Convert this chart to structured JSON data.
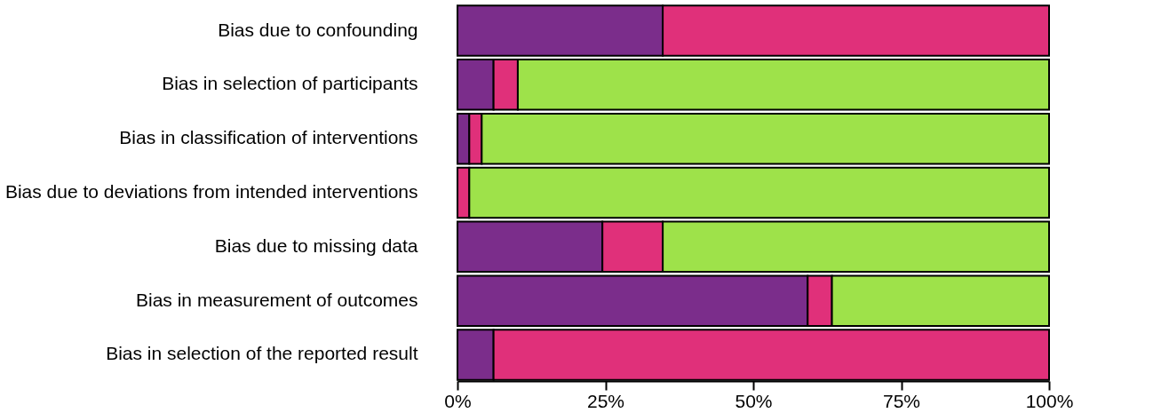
{
  "chart_data": {
    "type": "bar",
    "orientation": "horizontal",
    "stacked": true,
    "categories": [
      "Bias due to confounding",
      "Bias in selection of participants",
      "Bias in classification of interventions",
      "Bias due to deviations from intended interventions",
      "Bias due to missing data",
      "Bias in measurement of outcomes",
      "Bias in selection of the reported result"
    ],
    "series": [
      {
        "color": "#7b2d8b",
        "values": [
          34.7,
          6.1,
          2.0,
          null,
          24.5,
          59.2,
          6.1
        ]
      },
      {
        "color": "#e0307a",
        "values": [
          65.3,
          4.1,
          2.1,
          2.0,
          10.2,
          4.1,
          93.9
        ]
      },
      {
        "color": "#9ee24a",
        "values": [
          null,
          89.8,
          95.9,
          98.0,
          65.3,
          36.7,
          null
        ]
      }
    ],
    "xlim": [
      0,
      100
    ],
    "xticks": [
      {
        "value": 0,
        "label": "0%"
      },
      {
        "value": 25,
        "label": "25%"
      },
      {
        "value": 50,
        "label": "50%"
      },
      {
        "value": 75,
        "label": "75%"
      },
      {
        "value": 100,
        "label": "100%"
      }
    ],
    "grid": false,
    "legend": false
  }
}
